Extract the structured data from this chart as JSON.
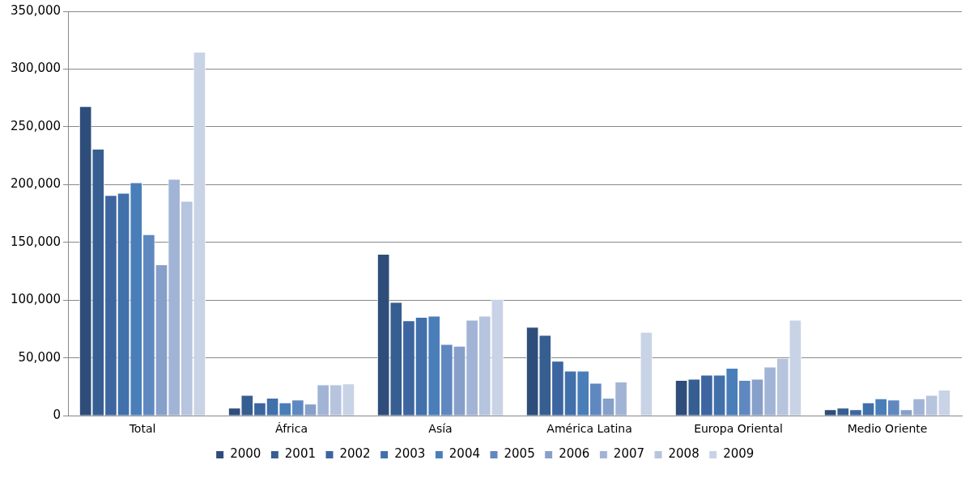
{
  "chart_data": {
    "type": "bar",
    "categories": [
      "Total",
      "África",
      "Asía",
      "América Latina",
      "Europa Oriental",
      "Medio Oriente"
    ],
    "series": [
      {
        "name": "2000",
        "color": "#2e4d7a",
        "values": [
          268000,
          7000,
          140000,
          77000,
          31000,
          5500
        ]
      },
      {
        "name": "2001",
        "color": "#375e90",
        "values": [
          231000,
          18000,
          98500,
          70000,
          32000,
          7000
        ]
      },
      {
        "name": "2002",
        "color": "#3d65a0",
        "values": [
          191000,
          11500,
          82500,
          47500,
          35500,
          5500
        ]
      },
      {
        "name": "2003",
        "color": "#4170ab",
        "values": [
          193000,
          15500,
          85500,
          39000,
          35500,
          11500
        ]
      },
      {
        "name": "2004",
        "color": "#4a7eb9",
        "values": [
          202000,
          11500,
          86500,
          39000,
          41500,
          15000
        ]
      },
      {
        "name": "2005",
        "color": "#6088c0",
        "values": [
          157000,
          14000,
          62000,
          28500,
          31000,
          14000
        ]
      },
      {
        "name": "2006",
        "color": "#87a0c9",
        "values": [
          131000,
          10500,
          60500,
          15500,
          32000,
          5500
        ]
      },
      {
        "name": "2007",
        "color": "#a2b4d6",
        "values": [
          205000,
          27000,
          83000,
          29500,
          42500,
          15000
        ]
      },
      {
        "name": "2008",
        "color": "#b6c4de",
        "values": [
          186000,
          27000,
          86500,
          null,
          50000,
          18000
        ]
      },
      {
        "name": "2009",
        "color": "#c9d3e6",
        "values": [
          315000,
          28000,
          101000,
          72500,
          83000,
          22500
        ]
      }
    ],
    "ylim": [
      0,
      350000
    ],
    "yticks": [
      0,
      {
        "value": 50000,
        "label": "50,000"
      },
      {
        "value": 100000,
        "label": "100,000"
      },
      {
        "value": 150000,
        "label": "150,000"
      },
      {
        "value": 200000,
        "label": "200,000"
      },
      {
        "value": 250000,
        "label": "250,000"
      },
      {
        "value": 300000,
        "label": "300,000"
      },
      {
        "value": 350000,
        "label": "350,000"
      }
    ],
    "grid": "y",
    "legend": "bottom"
  }
}
